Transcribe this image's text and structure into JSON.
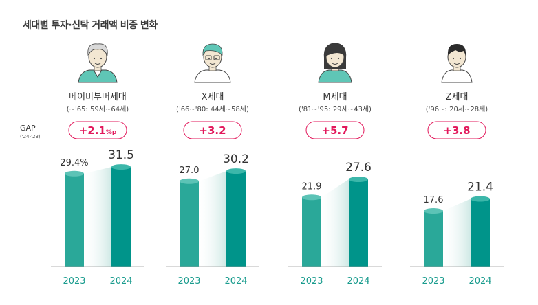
{
  "title": "세대별 투자·신탁 거래액 비중 변화",
  "gap_label": "GAP",
  "gap_sublabel": "('24-'23)",
  "colors": {
    "bar_2023": "#2aa899",
    "bar_2024": "#00948a",
    "bar_top_2023": "#5cc3b6",
    "bar_top_2024": "#3cb7aa",
    "gap_border": "#e2185b",
    "gap_text": "#e2185b",
    "year_text": "#1a9c8e"
  },
  "chart_data": {
    "type": "bar",
    "title": "세대별 투자·신탁 거래액 비중 변화",
    "categories": [
      "2023",
      "2024"
    ],
    "groups": [
      {
        "name": "베이비부머세대",
        "range": "(~'65: 59세~64세)",
        "icon": "babyboomer-avatar-icon",
        "gap": "+2.1",
        "gap_unit": "%p",
        "values": [
          29.4,
          31.5
        ],
        "labels": [
          "29.4%",
          "31.5"
        ]
      },
      {
        "name": "X세대",
        "range": "('66~'80: 44세~58세)",
        "icon": "genx-avatar-icon",
        "gap": "+3.2",
        "gap_unit": "",
        "values": [
          27.0,
          30.2
        ],
        "labels": [
          "27.0",
          "30.2"
        ]
      },
      {
        "name": "M세대",
        "range": "('81~'95: 29세~43세)",
        "icon": "millennial-avatar-icon",
        "gap": "+5.7",
        "gap_unit": "",
        "values": [
          21.9,
          27.6
        ],
        "labels": [
          "21.9",
          "27.6"
        ]
      },
      {
        "name": "Z세대",
        "range": "('96~: 20세~28세)",
        "icon": "genz-avatar-icon",
        "gap": "+3.8",
        "gap_unit": "",
        "values": [
          17.6,
          21.4
        ],
        "labels": [
          "17.6",
          "21.4"
        ]
      }
    ],
    "xlabel": "",
    "ylabel": "",
    "ylim": [
      0,
      35
    ],
    "grid": false,
    "legend": "none"
  }
}
